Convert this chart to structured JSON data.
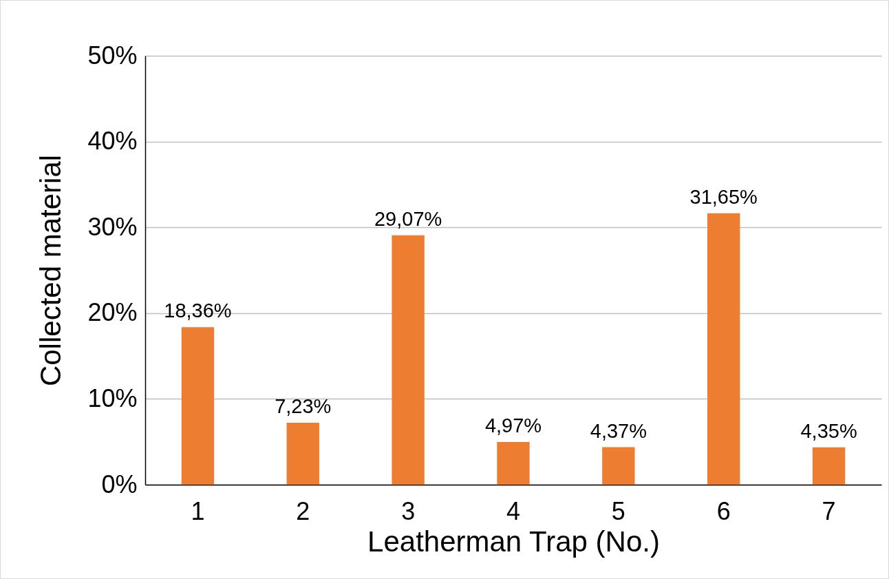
{
  "chart_data": {
    "type": "bar",
    "xlabel": "Leatherman Trap (No.)",
    "ylabel": "Collected material",
    "categories": [
      "1",
      "2",
      "3",
      "4",
      "5",
      "6",
      "7"
    ],
    "values": [
      18.36,
      7.23,
      29.07,
      4.97,
      4.37,
      31.65,
      4.35
    ],
    "value_labels": [
      "18,36%",
      "7,23%",
      "29,07%",
      "4,97%",
      "4,37%",
      "31,65%",
      "4,35%"
    ],
    "color": "#ed7d31",
    "ylim": [
      0,
      50
    ],
    "yticks": [
      {
        "value": 0,
        "label": "0%"
      },
      {
        "value": 10,
        "label": "10%"
      },
      {
        "value": 20,
        "label": "20%"
      },
      {
        "value": 30,
        "label": "30%"
      },
      {
        "value": 40,
        "label": "40%"
      },
      {
        "value": 50,
        "label": "50%"
      }
    ],
    "grid": "y"
  }
}
